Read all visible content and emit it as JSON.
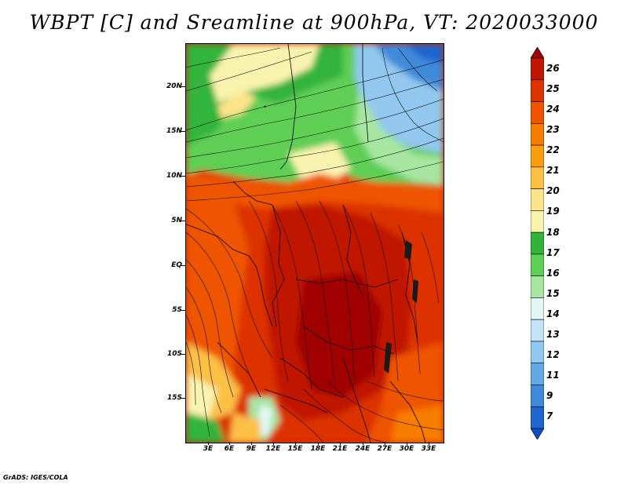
{
  "title": "WBPT [C] and Sreamline at 900hPa, VT: 2020033000",
  "credit": "GrADS: IGES/COLA",
  "latitude_labels": [
    "20N",
    "15N",
    "10N",
    "5N",
    "EQ",
    "5S",
    "10S",
    "15S"
  ],
  "longitude_labels": [
    "3E",
    "6E",
    "9E",
    "12E",
    "15E",
    "18E",
    "21E",
    "24E",
    "27E",
    "30E",
    "33E"
  ],
  "colorbar": {
    "labels": [
      "26",
      "25",
      "24",
      "23",
      "22",
      "21",
      "20",
      "19",
      "18",
      "17",
      "16",
      "15",
      "14",
      "13",
      "12",
      "11",
      "9",
      "7"
    ],
    "colors": [
      "#a00000",
      "#c01800",
      "#dd3300",
      "#ef5500",
      "#f77d00",
      "#fb9d10",
      "#fcc045",
      "#fde38a",
      "#f9f3b0",
      "#32b43c",
      "#5fce55",
      "#a6e6a0",
      "#e2f7f5",
      "#c3e3f7",
      "#92c8ef",
      "#63a9e5",
      "#3f8ada",
      "#1f66cf",
      "#0a4ec4"
    ]
  }
}
